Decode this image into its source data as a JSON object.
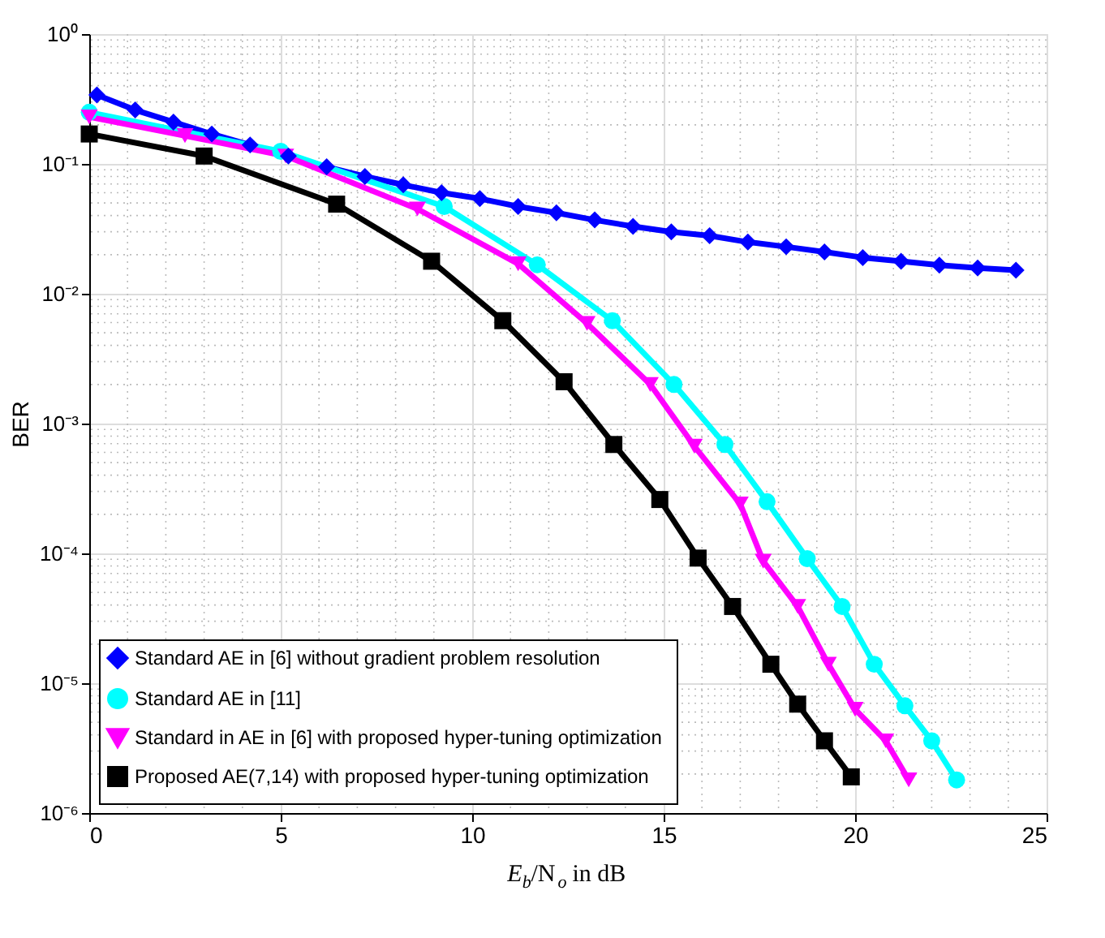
{
  "chart_data": {
    "type": "line",
    "xlabel": "E$_{b}$/N$_{o}$ in dB",
    "ylabel": "BER",
    "log": "y",
    "grid": true,
    "legend": "bottom left",
    "line_style": "solid",
    "xlim": [
      0,
      25
    ],
    "ylim": [
      1e-06,
      1
    ],
    "xticks": [
      0,
      5,
      10,
      15,
      20,
      25
    ],
    "yticks": [
      {
        "value": 1e-06,
        "label": "10⁻⁶"
      },
      {
        "value": 1e-05,
        "label": "10⁻⁵"
      },
      {
        "value": 0.0001,
        "label": "10⁻⁴"
      },
      {
        "value": 0.001,
        "label": "10⁻³"
      },
      {
        "value": 0.01,
        "label": "10⁻²"
      },
      {
        "value": 0.1,
        "label": "10⁻¹"
      },
      {
        "value": 1,
        "label": "10⁰"
      }
    ],
    "series": [
      {
        "name": "Standard AE in [6] without gradient problem resolution",
        "color": "#0000ff",
        "marker": "diamond",
        "x": [
          0.2,
          1.2,
          2.2,
          3.2,
          4.2,
          5.2,
          6.2,
          7.2,
          8.2,
          9.2,
          10.2,
          11.2,
          12.2,
          13.2,
          14.2,
          15.2,
          16.2,
          17.2,
          18.2,
          19.2,
          20.2,
          21.2,
          22.2,
          23.2,
          24.2
        ],
        "values": [
          0.34,
          0.26,
          0.21,
          0.17,
          0.14,
          0.115,
          0.095,
          0.08,
          0.069,
          0.06,
          0.054,
          0.047,
          0.042,
          0.037,
          0.033,
          0.03,
          0.028,
          0.025,
          0.023,
          0.021,
          0.019,
          0.0178,
          0.0166,
          0.0158,
          0.0152
        ]
      },
      {
        "name": "Standard AE in [11]",
        "color": "#00ffff",
        "marker": "circle",
        "x": [
          0,
          5.0,
          9.27,
          11.7,
          13.66,
          15.27,
          16.6,
          17.7,
          18.75,
          19.66,
          20.5,
          21.3,
          22.0,
          22.65
        ],
        "values": [
          0.25,
          0.125,
          0.047,
          0.0167,
          0.0062,
          0.002,
          0.00069,
          0.00025,
          9.1e-05,
          3.9e-05,
          1.4e-05,
          6.7e-06,
          3.6e-06,
          1.8e-06
        ]
      },
      {
        "name": "Standard in  AE in [6] with proposed hyper-tuning optimization",
        "color": "#ff00ff",
        "marker": "triangle",
        "x": [
          0,
          2.5,
          5.13,
          8.57,
          11.2,
          13.0,
          14.65,
          15.8,
          17.0,
          17.6,
          18.5,
          19.3,
          20.0,
          20.8,
          21.4
        ],
        "values": [
          0.23,
          0.165,
          0.115,
          0.045,
          0.017,
          0.0059,
          0.002,
          0.00067,
          0.00024,
          8.7e-05,
          3.9e-05,
          1.4e-05,
          6.3e-06,
          3.6e-06,
          1.8e-06
        ]
      },
      {
        "name": "Proposed AE(7,14) with proposed hyper-tuning optimization",
        "color": "#000000",
        "marker": "square",
        "x": [
          0,
          3.0,
          6.46,
          8.94,
          10.8,
          12.4,
          13.7,
          14.9,
          15.9,
          16.8,
          17.8,
          18.5,
          19.2,
          19.9
        ],
        "values": [
          0.17,
          0.115,
          0.049,
          0.0178,
          0.0062,
          0.0021,
          0.00069,
          0.00026,
          9.2e-05,
          3.9e-05,
          1.4e-05,
          6.9e-06,
          3.6e-06,
          1.9e-06
        ]
      }
    ]
  }
}
